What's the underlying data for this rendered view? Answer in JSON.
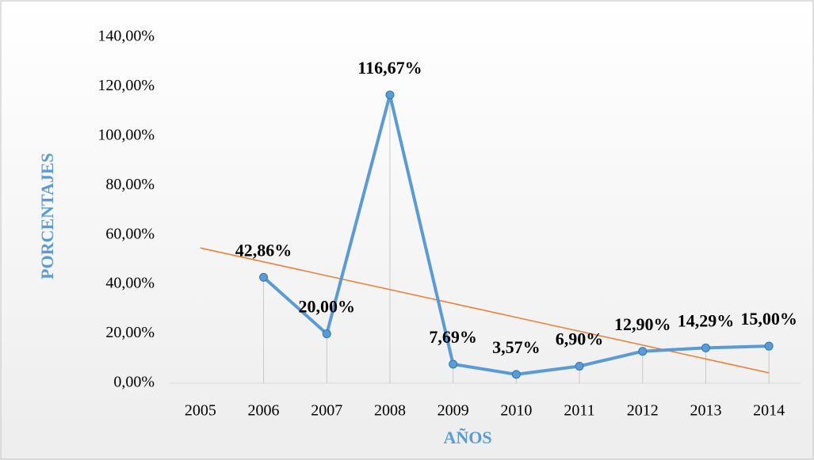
{
  "chart_data": {
    "type": "line",
    "x_label": "AÑOS",
    "y_label": "PORCENTAJES",
    "categories": [
      "2005",
      "2006",
      "2007",
      "2008",
      "2009",
      "2010",
      "2011",
      "2012",
      "2013",
      "2014"
    ],
    "series": [
      {
        "name": "PORCENTAJES",
        "color": "#5b9bd5",
        "values": [
          null,
          42.86,
          20.0,
          116.67,
          7.69,
          3.57,
          6.9,
          12.9,
          14.29,
          15.0
        ],
        "value_labels": [
          null,
          "42,86%",
          "20,00%",
          "116,67%",
          "7,69%",
          "3,57%",
          "6,90%",
          "12,90%",
          "14,29%",
          "15,00%"
        ]
      }
    ],
    "trendline": {
      "type": "linear",
      "color": "#ed7d31"
    },
    "drop_lines": true,
    "ylim": [
      0,
      140
    ],
    "yticks": [
      {
        "value": 0,
        "label": "0,00%"
      },
      {
        "value": 20,
        "label": "20,00%"
      },
      {
        "value": 40,
        "label": "40,00%"
      },
      {
        "value": 60,
        "label": "60,00%"
      },
      {
        "value": 80,
        "label": "80,00%"
      },
      {
        "value": 100,
        "label": "100,00%"
      },
      {
        "value": 120,
        "label": "120,00%"
      },
      {
        "value": 140,
        "label": "140,00%"
      }
    ],
    "grid": false
  }
}
